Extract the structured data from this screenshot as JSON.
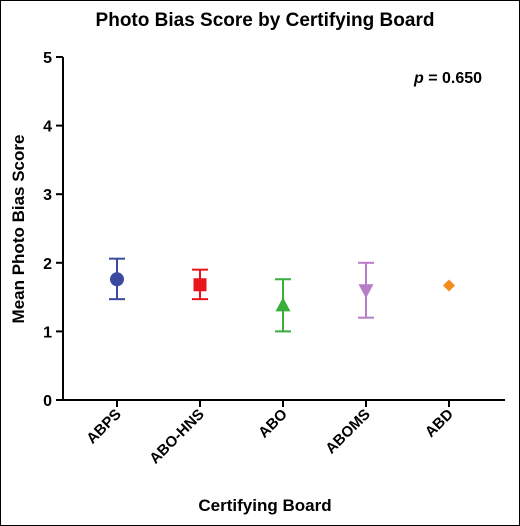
{
  "chart_data": {
    "type": "scatter",
    "title": "Photo Bias Score by Certifying Board",
    "xlabel": "Certifying Board",
    "ylabel": "Mean Photo Bias Score",
    "ylim": [
      0,
      5
    ],
    "yticks": [
      "0",
      "1",
      "2",
      "3",
      "4",
      "5"
    ],
    "annotation_p": "p",
    "annotation_value": " = 0.650",
    "grid": false,
    "categories": [
      "ABPS",
      "ABO-HNS",
      "ABO",
      "ABOMS",
      "ABD"
    ],
    "points": [
      {
        "category": "ABPS",
        "mean": 1.76,
        "low": 1.47,
        "high": 2.06,
        "marker": "circle",
        "color": "#3a4aa0"
      },
      {
        "category": "ABO-HNS",
        "mean": 1.68,
        "low": 1.47,
        "high": 1.9,
        "marker": "square",
        "color": "#e8141e"
      },
      {
        "category": "ABO",
        "mean": 1.38,
        "low": 1.0,
        "high": 1.76,
        "marker": "triangle-up",
        "color": "#3aae3a"
      },
      {
        "category": "ABOMS",
        "mean": 1.6,
        "low": 1.2,
        "high": 2.0,
        "marker": "triangle-down",
        "color": "#b87dc8"
      },
      {
        "category": "ABD",
        "mean": 1.67,
        "low": null,
        "high": null,
        "marker": "diamond",
        "color": "#f28c1c"
      }
    ]
  }
}
